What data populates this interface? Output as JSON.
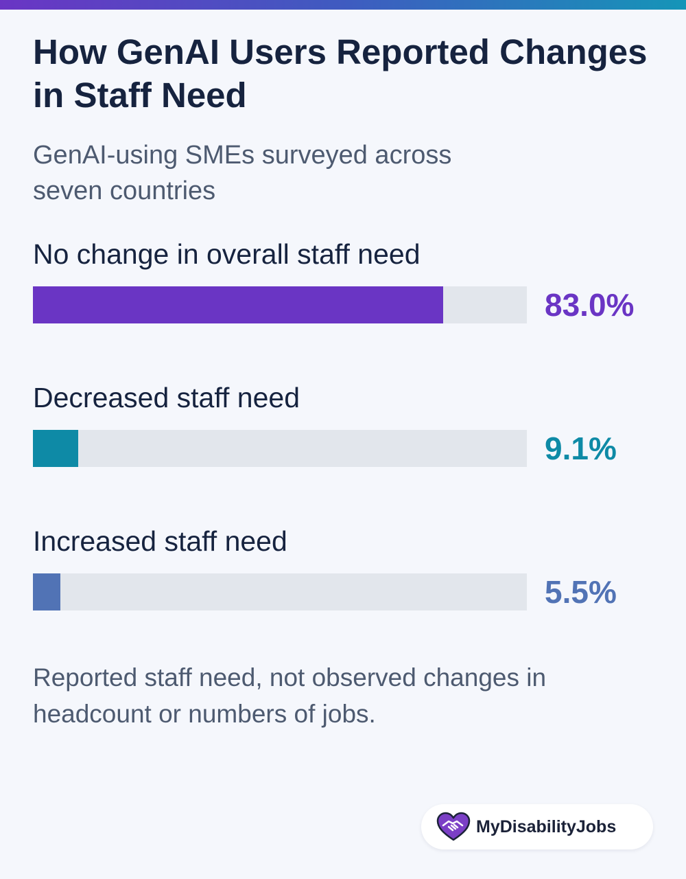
{
  "header": {
    "title": "How GenAI Users Reported Changes in Staff Need",
    "subtitle": "GenAI-using SMEs surveyed across seven countries"
  },
  "colors": {
    "accent_stripe": [
      "#6a35c4",
      "#3f5bc0",
      "#1595b8"
    ],
    "track": "#e2e6ec"
  },
  "chart_data": {
    "type": "bar",
    "orientation": "horizontal",
    "title": "How GenAI Users Reported Changes in Staff Need",
    "subtitle": "GenAI-using SMEs surveyed across seven countries",
    "xlim": [
      0,
      100
    ],
    "unit": "%",
    "grid": false,
    "legend": "none",
    "categories": [
      "No change in overall staff need",
      "Decreased staff need",
      "Increased staff need"
    ],
    "values": [
      83.0,
      9.1,
      5.5
    ],
    "value_labels": [
      "83.0%",
      "9.1%",
      "5.5%"
    ],
    "colors": [
      "#6a35c4",
      "#0e8aa6",
      "#5173b5"
    ]
  },
  "footer": {
    "note": "Reported staff need, not observed changes in headcount or numbers of jobs.",
    "logo_text": "MyDisabilityJobs",
    "logo_icon": "heart-handshake-icon",
    "logo_color": "#7b3fc6"
  }
}
